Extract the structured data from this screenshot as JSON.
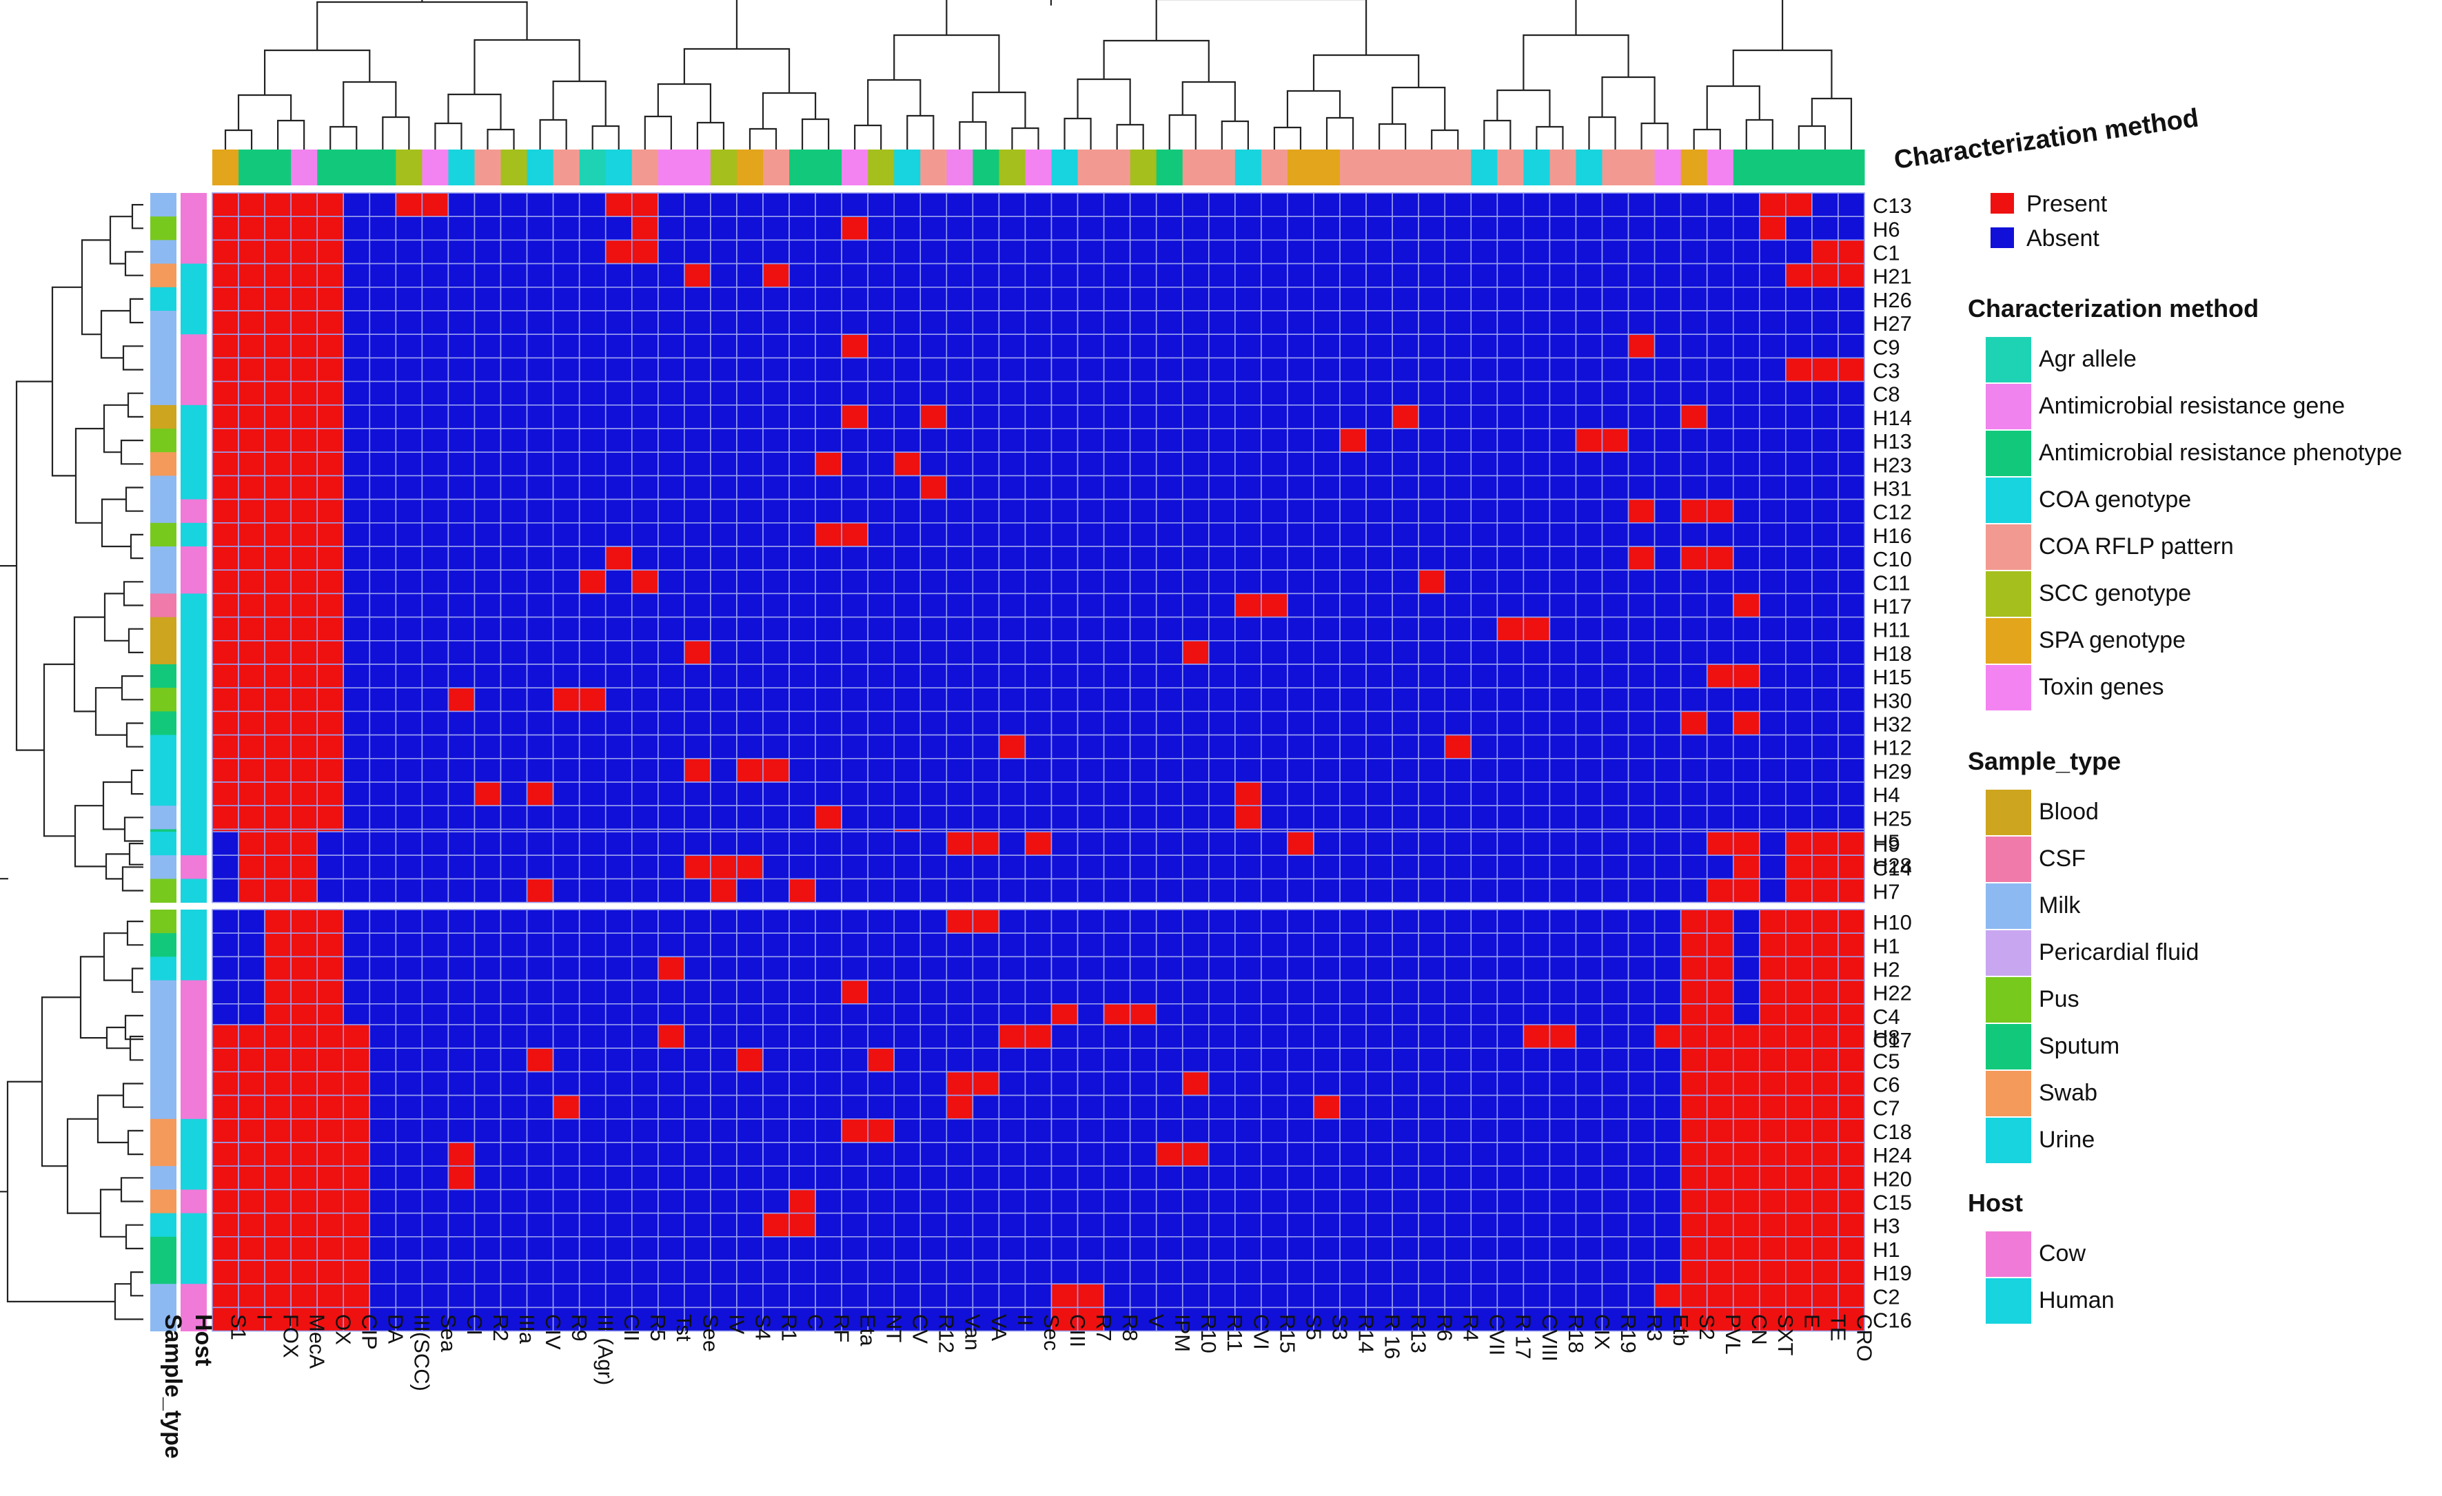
{
  "colors": {
    "present": "#ef1010",
    "absent": "#1010d8",
    "grid": "#9aa0ee",
    "method": {
      "Agr allele": "#1ed3b4",
      "Antimicrobial resistance gene": "#f083ee",
      "Antimicrobial resistance phenotype": "#12c97b",
      "COA genotype": "#18d4de",
      "COA RFLP pattern": "#f29a91",
      "SCC genotype": "#a5bf1c",
      "SPA genotype": "#e3a51b",
      "Toxin genes": "#f483f2"
    },
    "sample": {
      "Blood": "#cda51e",
      "CSF": "#f07aa9",
      "Milk": "#8db9f2",
      "Pericardial fluid": "#c8a7f0",
      "Pus": "#78c91e",
      "Sputum": "#12c97b",
      "Swab": "#f49a5a",
      "Urine": "#18d4de"
    },
    "host": {
      "Cow": "#f07ad8",
      "Human": "#18d4de"
    }
  },
  "chart_data": {
    "type": "heatmap",
    "title": "",
    "column_annotation_label": "Characterization method",
    "columns": [
      "S1",
      "I",
      "FOX",
      "MecA",
      "OX",
      "CIP",
      "DA",
      "III(SCC)",
      "Sea",
      "CI",
      "R2",
      "IIIa",
      "CIV",
      "R9",
      "III (Agr)",
      "CII",
      "R5",
      "Tst",
      "See",
      "IV",
      "S4",
      "R1",
      "C",
      "RF",
      "Eta",
      "NT",
      "CV",
      "R12",
      "Van",
      "VA",
      "II",
      "Sec",
      "CIII",
      "R7",
      "R8",
      "V",
      "IPM",
      "R10",
      "R11",
      "CVI",
      "R15",
      "S5",
      "S3",
      "R14",
      "R 16",
      "R13",
      "R6",
      "R4",
      "CVII",
      "R 17",
      "CVIII",
      "R18",
      "CIX",
      "R19",
      "R3",
      "Etb",
      "S2",
      "PVL",
      "CN",
      "SXT",
      "E",
      "TE",
      "CRO"
    ],
    "column_method": [
      "SPA genotype",
      "Antimicrobial resistance phenotype",
      "Antimicrobial resistance phenotype",
      "Antimicrobial resistance gene",
      "Antimicrobial resistance phenotype",
      "Antimicrobial resistance phenotype",
      "Antimicrobial resistance phenotype",
      "SCC genotype",
      "Toxin genes",
      "COA genotype",
      "COA RFLP pattern",
      "SCC genotype",
      "COA genotype",
      "COA RFLP pattern",
      "Agr allele",
      "COA genotype",
      "COA RFLP pattern",
      "Toxin genes",
      "Toxin genes",
      "SCC genotype",
      "SPA genotype",
      "COA RFLP pattern",
      "Antimicrobial resistance phenotype",
      "Antimicrobial resistance phenotype",
      "Toxin genes",
      "SCC genotype",
      "COA genotype",
      "COA RFLP pattern",
      "Antimicrobial resistance gene",
      "Antimicrobial resistance phenotype",
      "SCC genotype",
      "Toxin genes",
      "COA genotype",
      "COA RFLP pattern",
      "COA RFLP pattern",
      "SCC genotype",
      "Antimicrobial resistance phenotype",
      "COA RFLP pattern",
      "COA RFLP pattern",
      "COA genotype",
      "COA RFLP pattern",
      "SPA genotype",
      "SPA genotype",
      "COA RFLP pattern",
      "COA RFLP pattern",
      "COA RFLP pattern",
      "COA RFLP pattern",
      "COA RFLP pattern",
      "COA genotype",
      "COA RFLP pattern",
      "COA genotype",
      "COA RFLP pattern",
      "COA genotype",
      "COA RFLP pattern",
      "COA RFLP pattern",
      "Toxin genes",
      "SPA genotype",
      "Toxin genes",
      "Antimicrobial resistance phenotype",
      "Antimicrobial resistance phenotype",
      "Antimicrobial resistance phenotype",
      "Antimicrobial resistance phenotype",
      "Antimicrobial resistance phenotype"
    ],
    "row_groups": [
      [
        "C13",
        "H6",
        "C1",
        "H21",
        "H26",
        "H27",
        "C9",
        "C3",
        "C8",
        "H14",
        "H13",
        "H23",
        "H31",
        "C12",
        "H16",
        "C10",
        "C11",
        "H17",
        "H11",
        "H18",
        "H15",
        "H30",
        "H32",
        "H12",
        "H29",
        "H4",
        "H25",
        "H5",
        "H28"
      ],
      [
        "H9",
        "C14",
        "H7"
      ],
      [
        "H10",
        "H1",
        "H2",
        "H22",
        "C4",
        "C17"
      ],
      [
        "H8",
        "C5",
        "C6",
        "C7",
        "C18",
        "H24",
        "H20",
        "C15",
        "H3",
        "H1",
        "H19",
        "C2",
        "C16"
      ]
    ],
    "row_labels_visible": {
      "group1": [
        "C13",
        "H6",
        "C1",
        "H21",
        "H26",
        "H27",
        "C9",
        "C3",
        "C8",
        "H14",
        "H13",
        "H23",
        "H31",
        "C12",
        "H16",
        "C10",
        "C11",
        "H17",
        "H11",
        "H18",
        "H15",
        "H30",
        "H32",
        "H12",
        "H29",
        "H4",
        "H25",
        "H5",
        "H28"
      ],
      "group2": [
        "H9",
        "C14",
        "H7"
      ],
      "group3": [
        "H10",
        "H1",
        "H2",
        "H22",
        "C4",
        "C17"
      ],
      "group4": [
        "H8",
        "C5",
        "C6",
        "C7",
        "C18",
        "H24",
        "H20",
        "C15",
        "H3",
        "H1",
        "H19",
        "C2",
        "C16"
      ]
    },
    "row_sample_type": [
      "Milk",
      "Pus",
      "Milk",
      "Swab",
      "Urine",
      "Milk",
      "Milk",
      "Milk",
      "Milk",
      "Blood",
      "Pus",
      "Swab",
      "Milk",
      "Milk",
      "Pus",
      "Milk",
      "Milk",
      "CSF",
      "Blood",
      "Blood",
      "Sputum",
      "Pus",
      "Sputum",
      "Urine",
      "Urine",
      "Urine",
      "Milk",
      "Sputum",
      "Sputum",
      "Urine",
      "Milk",
      "Pus",
      "Pus",
      "Sputum",
      "Urine",
      "Milk",
      "Milk",
      "Milk",
      "Milk",
      "Milk",
      "Milk",
      "Milk",
      "Swab",
      "Swab",
      "Milk",
      "Swab",
      "Urine",
      "Sputum",
      "Sputum",
      "Milk",
      "Milk"
    ],
    "row_host": [
      "Cow",
      "Cow",
      "Cow",
      "Human",
      "Human",
      "Human",
      "Cow",
      "Cow",
      "Cow",
      "Human",
      "Human",
      "Human",
      "Human",
      "Cow",
      "Human",
      "Cow",
      "Cow",
      "Human",
      "Human",
      "Human",
      "Human",
      "Human",
      "Human",
      "Human",
      "Human",
      "Human",
      "Human",
      "Human",
      "Human",
      "Human",
      "Cow",
      "Human",
      "Human",
      "Human",
      "Human",
      "Cow",
      "Cow",
      "Human",
      "Cow",
      "Cow",
      "Cow",
      "Cow",
      "Human",
      "Human",
      "Human",
      "Cow",
      "Human",
      "Human",
      "Human",
      "Cow",
      "Cow"
    ],
    "base_present_columns": {
      "group1": [
        "S1",
        "I",
        "FOX",
        "MecA",
        "OX"
      ],
      "group2": [
        "I",
        "FOX",
        "MecA",
        "CN",
        "E",
        "TE",
        "CRO"
      ],
      "group3": [
        "FOX",
        "MecA",
        "OX",
        "S2",
        "PVL",
        "SXT",
        "E",
        "TE",
        "CRO"
      ],
      "group4": [
        "S1",
        "I",
        "FOX",
        "MecA",
        "OX",
        "CIP",
        "S2",
        "PVL",
        "CN",
        "SXT",
        "E",
        "TE",
        "CRO"
      ]
    },
    "extra_present_cells": [
      [
        "C13",
        "SXT"
      ],
      [
        "C13",
        "E"
      ],
      [
        "H6",
        "SXT"
      ],
      [
        "C1",
        "TE"
      ],
      [
        "C1",
        "CRO"
      ],
      [
        "H21",
        "E"
      ],
      [
        "H21",
        "TE"
      ],
      [
        "H21",
        "CRO"
      ],
      [
        "C13",
        "III(SCC)"
      ],
      [
        "C13",
        "Sea"
      ],
      [
        "C13",
        "R5"
      ],
      [
        "C13",
        "CII"
      ],
      [
        "H6",
        "R5"
      ],
      [
        "C1",
        "R5"
      ],
      [
        "C1",
        "CII"
      ],
      [
        "H6",
        "Eta"
      ],
      [
        "H21",
        "See"
      ],
      [
        "H21",
        "R1"
      ],
      [
        "C9",
        "R3"
      ],
      [
        "C9",
        "Eta"
      ],
      [
        "C3",
        "E"
      ],
      [
        "C3",
        "TE"
      ],
      [
        "C3",
        "CRO"
      ],
      [
        "H14",
        "S2"
      ],
      [
        "H14",
        "R12"
      ],
      [
        "H14",
        "Eta"
      ],
      [
        "H14",
        "R13"
      ],
      [
        "H13",
        "CIX"
      ],
      [
        "H13",
        "R19"
      ],
      [
        "H13",
        "R14"
      ],
      [
        "H23",
        "RF"
      ],
      [
        "H23",
        "CV"
      ],
      [
        "H31",
        "R12"
      ],
      [
        "C12",
        "R3"
      ],
      [
        "C12",
        "PVL"
      ],
      [
        "C12",
        "S2"
      ],
      [
        "H16",
        "Eta"
      ],
      [
        "H16",
        "RF"
      ],
      [
        "C10",
        "R3"
      ],
      [
        "C10",
        "S2"
      ],
      [
        "C10",
        "PVL"
      ],
      [
        "C10",
        "CII"
      ],
      [
        "C11",
        "III (Agr)"
      ],
      [
        "C11",
        "R5"
      ],
      [
        "C11",
        "R6"
      ],
      [
        "H17",
        "CVI"
      ],
      [
        "H17",
        "R15"
      ],
      [
        "H17",
        "CN"
      ],
      [
        "H11",
        "R 17"
      ],
      [
        "H11",
        "CVIII"
      ],
      [
        "H18",
        "R10"
      ],
      [
        "H18",
        "See"
      ],
      [
        "H15",
        "PVL"
      ],
      [
        "H15",
        "CN"
      ],
      [
        "H30",
        "R9"
      ],
      [
        "H30",
        "III (Agr)"
      ],
      [
        "H30",
        "CI"
      ],
      [
        "H32",
        "S2"
      ],
      [
        "H32",
        "CN"
      ],
      [
        "H12",
        "R4"
      ],
      [
        "H12",
        "II"
      ],
      [
        "H29",
        "S4"
      ],
      [
        "H29",
        "R1"
      ],
      [
        "H29",
        "See"
      ],
      [
        "H4",
        "CIV"
      ],
      [
        "H4",
        "CVI"
      ],
      [
        "H4",
        "R2"
      ],
      [
        "H25",
        "RF"
      ],
      [
        "H25",
        "CVI"
      ],
      [
        "H5",
        "CV"
      ],
      [
        "H28",
        "CV"
      ],
      [
        "H28",
        "R12"
      ],
      [
        "H9",
        "Van"
      ],
      [
        "H9",
        "VA"
      ],
      [
        "H9",
        "Sec"
      ],
      [
        "H9",
        "S5"
      ],
      [
        "H9",
        "PVL"
      ],
      [
        "C14",
        "See"
      ],
      [
        "C14",
        "IV"
      ],
      [
        "C14",
        "S4"
      ],
      [
        "H7",
        "CIV"
      ],
      [
        "H7",
        "IV"
      ],
      [
        "H7",
        "C"
      ],
      [
        "H7",
        "PVL"
      ],
      [
        "H10",
        "Van"
      ],
      [
        "H10",
        "VA"
      ],
      [
        "H2",
        "Tst"
      ],
      [
        "H22",
        "Eta"
      ],
      [
        "C4",
        "CIII"
      ],
      [
        "C4",
        "R8"
      ],
      [
        "C4",
        "V"
      ],
      [
        "C17",
        "V"
      ],
      [
        "C17",
        "R9"
      ],
      [
        "C17",
        "III (Agr)"
      ],
      [
        "H8",
        "CVIII"
      ],
      [
        "H8",
        "R18"
      ],
      [
        "H8",
        "Etb"
      ],
      [
        "H8",
        "Sec"
      ],
      [
        "H8",
        "II"
      ],
      [
        "H8",
        "Tst"
      ],
      [
        "C5",
        "S4"
      ],
      [
        "C5",
        "NT"
      ],
      [
        "C5",
        "CIV"
      ],
      [
        "C6",
        "R10"
      ],
      [
        "C6",
        "Van"
      ],
      [
        "C6",
        "VA"
      ],
      [
        "C7",
        "R9"
      ],
      [
        "C7",
        "S3"
      ],
      [
        "C7",
        "Van"
      ],
      [
        "C18",
        "Eta"
      ],
      [
        "C18",
        "NT"
      ],
      [
        "H24",
        "R10"
      ],
      [
        "H24",
        "IPM"
      ],
      [
        "H24",
        "CI"
      ],
      [
        "H20",
        "CI"
      ],
      [
        "C15",
        "C"
      ],
      [
        "H3",
        "C"
      ],
      [
        "H3",
        "R1"
      ],
      [
        "C2",
        "R7"
      ],
      [
        "C2",
        "CIII"
      ],
      [
        "C2",
        "Etb"
      ],
      [
        "C16",
        "R7"
      ],
      [
        "C16",
        "CIII"
      ]
    ]
  },
  "legend": {
    "presence": {
      "items": [
        {
          "label": "Present",
          "key": "present"
        },
        {
          "label": "Absent",
          "key": "absent"
        }
      ]
    },
    "method": {
      "title": "Characterization method",
      "items": [
        "Agr allele",
        "Antimicrobial resistance gene",
        "Antimicrobial resistance phenotype",
        "COA genotype",
        "COA RFLP pattern",
        "SCC genotype",
        "SPA genotype",
        "Toxin genes"
      ]
    },
    "sample": {
      "title": "Sample_type",
      "items": [
        "Blood",
        "CSF",
        "Milk",
        "Pericardial fluid",
        "Pus",
        "Sputum",
        "Swab",
        "Urine"
      ]
    },
    "host": {
      "title": "Host",
      "items": [
        "Cow",
        "Human"
      ]
    }
  },
  "axis_labels": {
    "sample_type": "Sample_type",
    "host": "Host"
  }
}
